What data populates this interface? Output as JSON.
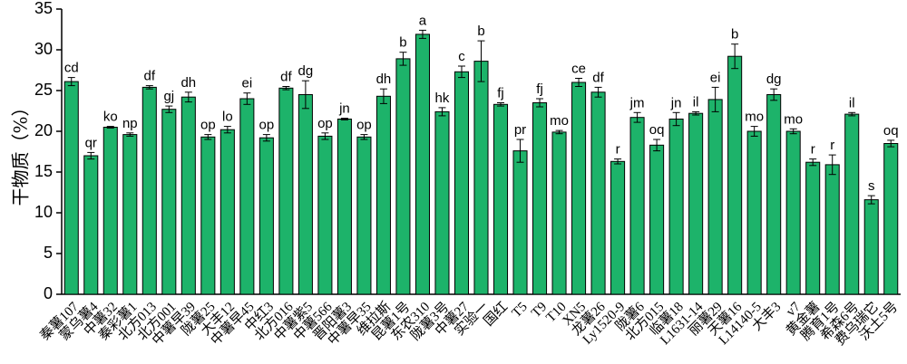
{
  "chart_data": {
    "type": "bar",
    "y_label": "干物质（%）",
    "categories": [
      "秦薯107",
      "蒙乌薯4",
      "中薯32",
      "秦彩薯1",
      "北方013",
      "北方001",
      "中薯早39",
      "陇薯25",
      "大丰12",
      "中薯早45",
      "中红3",
      "北方016",
      "中薯紫5",
      "中薯566",
      "晋阳薯3",
      "中薯早35",
      "维拉斯",
      "昆薯1号",
      "东农310",
      "陇薯3号",
      "中薯27",
      "实验一",
      "国红",
      "T5",
      "T9",
      "T10",
      "XN5",
      "龙薯26",
      "Ly1520-9",
      "陇薯6",
      "北方015",
      "临薯18",
      "L1631-14",
      "丽薯29",
      "天薯16",
      "L14140-5",
      "大丰3",
      "v7",
      "黄金薯",
      "腾育1号",
      "希森6号",
      "费乌瑞它",
      "沃土5号"
    ],
    "values": [
      26.1,
      17.0,
      20.5,
      19.6,
      25.4,
      22.7,
      24.2,
      19.3,
      20.2,
      24.0,
      19.2,
      25.3,
      24.5,
      19.4,
      21.5,
      19.3,
      24.3,
      28.9,
      31.9,
      22.4,
      27.3,
      28.6,
      23.3,
      17.6,
      23.5,
      19.9,
      26.0,
      24.8,
      16.3,
      21.7,
      18.3,
      21.5,
      22.2,
      23.9,
      29.2,
      20.0,
      24.5,
      20.0,
      16.2,
      15.9,
      22.1,
      11.6,
      18.5
    ],
    "errors": [
      0.5,
      0.4,
      0.1,
      0.2,
      0.2,
      0.4,
      0.6,
      0.3,
      0.4,
      0.7,
      0.4,
      0.2,
      1.7,
      0.4,
      0.1,
      0.3,
      0.9,
      0.8,
      0.5,
      0.5,
      0.7,
      2.5,
      0.2,
      1.4,
      0.5,
      0.2,
      0.5,
      0.6,
      0.3,
      0.6,
      0.7,
      0.8,
      0.2,
      1.5,
      1.5,
      0.6,
      0.7,
      0.3,
      0.4,
      1.2,
      0.2,
      0.5,
      0.4
    ],
    "letters": [
      "cd",
      "qr",
      "ko",
      "np",
      "df",
      "gj",
      "dh",
      "op",
      "lo",
      "ei",
      "op",
      "df",
      "dg",
      "op",
      "jn",
      "op",
      "dh",
      "b",
      "a",
      "hk",
      "c",
      "b",
      "fj",
      "pr",
      "fj",
      "mo",
      "ce",
      "df",
      "r",
      "jm",
      "oq",
      "jn",
      "il",
      "ei",
      "b",
      "mo",
      "dg",
      "mo",
      "r",
      "r",
      "il",
      "s",
      "oq"
    ],
    "color": "#1db36a",
    "ylim": [
      0,
      35
    ],
    "yticks": [
      0,
      5,
      10,
      15,
      20,
      25,
      30,
      35
    ]
  }
}
